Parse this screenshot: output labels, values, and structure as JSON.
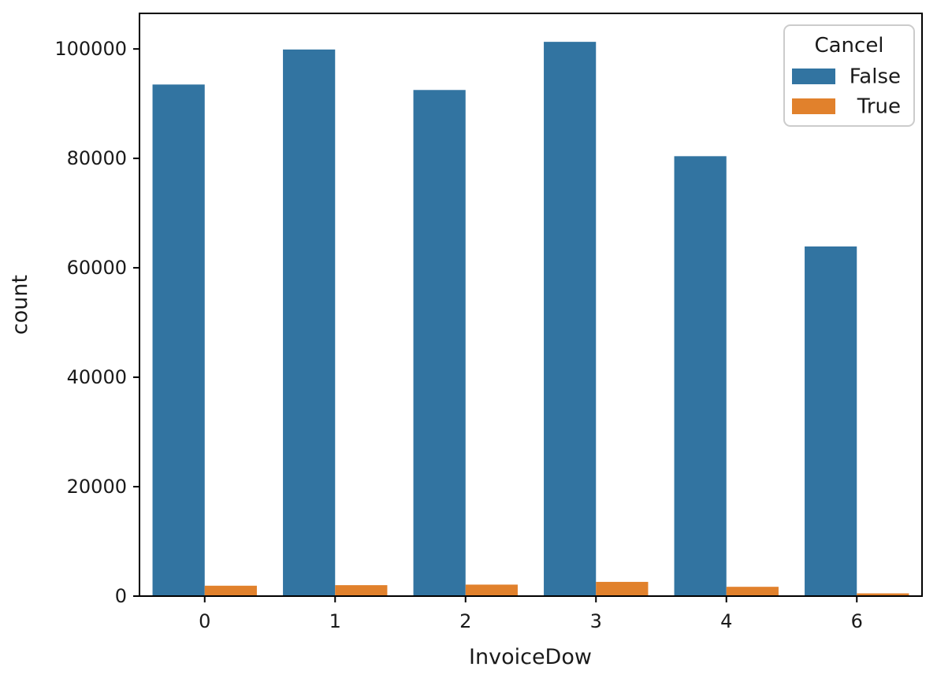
{
  "chart_data": {
    "type": "bar",
    "title": "",
    "xlabel": "InvoiceDow",
    "ylabel": "count",
    "categories": [
      "0",
      "1",
      "2",
      "3",
      "4",
      "6"
    ],
    "series": [
      {
        "name": "False",
        "color": "#3274a1",
        "values": [
          93500,
          99900,
          92500,
          101300,
          80400,
          63900
        ]
      },
      {
        "name": "True",
        "color": "#e1812c",
        "values": [
          1900,
          2000,
          2100,
          2600,
          1700,
          500
        ]
      }
    ],
    "legend": {
      "title": "Cancel",
      "position": "upper right",
      "entries": [
        "False",
        "True"
      ]
    },
    "ylim": [
      0,
      106500
    ],
    "yticks": [
      0,
      20000,
      40000,
      60000,
      80000,
      100000
    ],
    "grid": false
  },
  "style": {
    "bar_false_color": "#3274a1",
    "bar_true_color": "#e1812c",
    "spine_color": "#000000",
    "text_color": "#1a1a1a",
    "legend_border_color": "#cccccc",
    "background_color": "#ffffff"
  }
}
